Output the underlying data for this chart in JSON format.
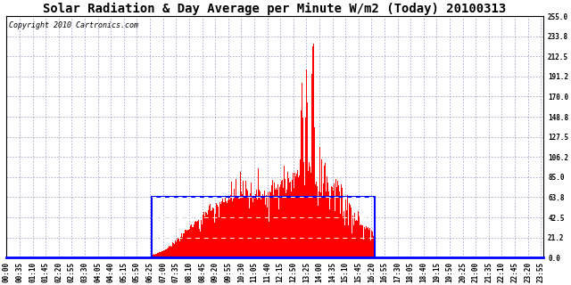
{
  "title": "Solar Radiation & Day Average per Minute W/m2 (Today) 20100313",
  "copyright": "Copyright 2010 Cartronics.com",
  "background_color": "#ffffff",
  "plot_bg_color": "#ffffff",
  "bar_color": "#ff0000",
  "grid_color": "#7777aa",
  "ylim": [
    0.0,
    255.0
  ],
  "yticks": [
    0.0,
    21.2,
    42.5,
    63.8,
    85.0,
    106.2,
    127.5,
    148.8,
    170.0,
    191.2,
    212.5,
    233.8,
    255.0
  ],
  "title_fontsize": 10,
  "copyright_fontsize": 6,
  "tick_fontsize": 5.5,
  "total_minutes": 1440,
  "sunrise_minute": 390,
  "sunset_minute": 988,
  "day_avg": 63.8,
  "box_color": "#0000ff",
  "dashed_line_color": "#ffffff",
  "bottom_line_color": "#0000ff"
}
